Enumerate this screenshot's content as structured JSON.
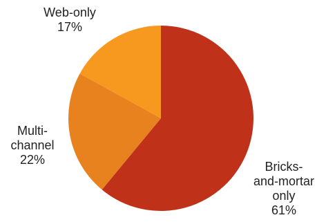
{
  "chart_data": {
    "type": "pie",
    "start_angle_deg": 0,
    "direction": "clockwise",
    "slices": [
      {
        "label_lines": [
          "Bricks-",
          "and-mortar",
          "only"
        ],
        "value_label": "61%",
        "value": 61,
        "color": "#c0311a"
      },
      {
        "label_lines": [
          "Multi-",
          "channel"
        ],
        "value_label": "22%",
        "value": 22,
        "color": "#e8821e"
      },
      {
        "label_lines": [
          "Web-only"
        ],
        "value_label": "17%",
        "value": 17,
        "color": "#f7981f"
      }
    ]
  }
}
